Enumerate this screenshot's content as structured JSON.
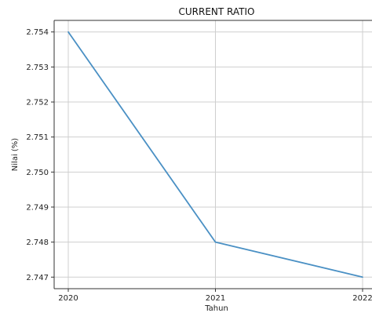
{
  "chart_data": {
    "type": "line",
    "title": "CURRENT RATIO",
    "xlabel": "Tahun",
    "ylabel": "Nilai (%)",
    "categories": [
      "2020",
      "2021",
      "2022"
    ],
    "series": [
      {
        "values": [
          2.754,
          2.748,
          2.747
        ],
        "color": "#4a90c4"
      }
    ],
    "yticks": [
      "2.747",
      "2.748",
      "2.749",
      "2.750",
      "2.751",
      "2.752",
      "2.753",
      "2.754"
    ],
    "ylim": [
      2.74667,
      2.75433
    ],
    "grid": true
  }
}
